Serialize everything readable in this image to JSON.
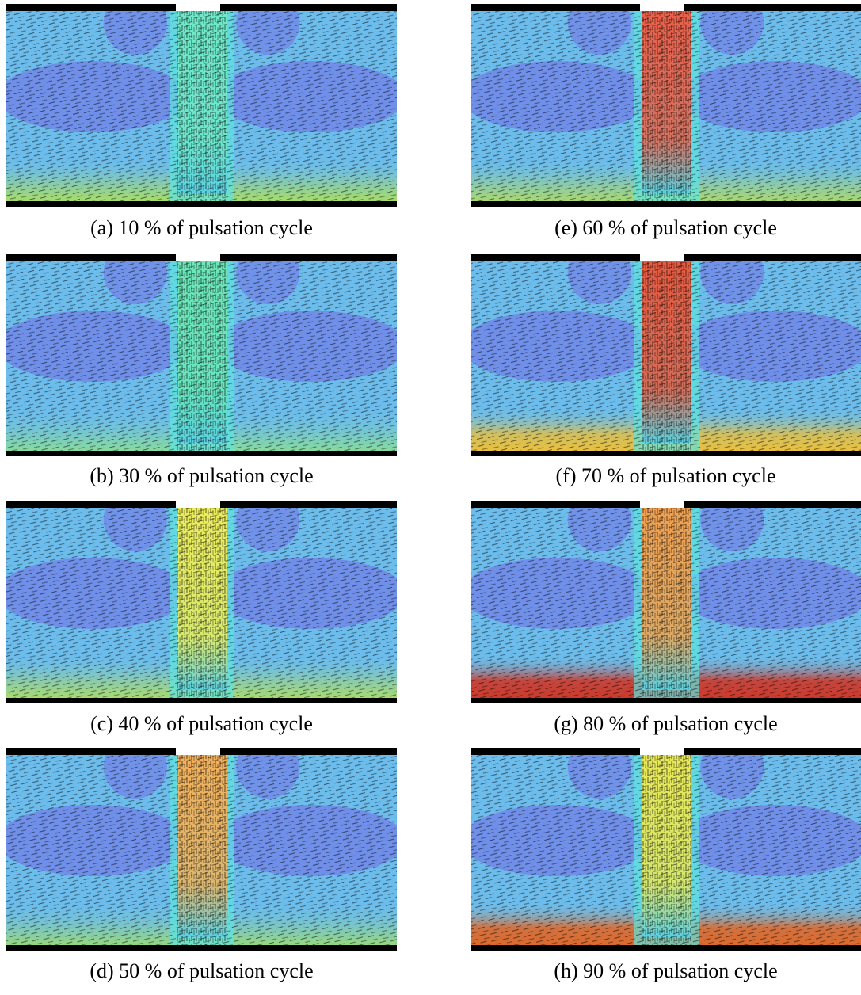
{
  "panels": [
    {
      "caption": "(a) 10 % of pulsation cycle"
    },
    {
      "caption": "(b) 30 % of pulsation cycle"
    },
    {
      "caption": "(c) 40 % of pulsation cycle"
    },
    {
      "caption": "(d) 50 % of pulsation cycle"
    },
    {
      "caption": "(e) 60 % of pulsation cycle"
    },
    {
      "caption": "(f) 70 % of pulsation cycle"
    },
    {
      "caption": "(g) 80 % of pulsation cycle"
    },
    {
      "caption": "(h) 90 % of pulsation cycle"
    }
  ]
}
